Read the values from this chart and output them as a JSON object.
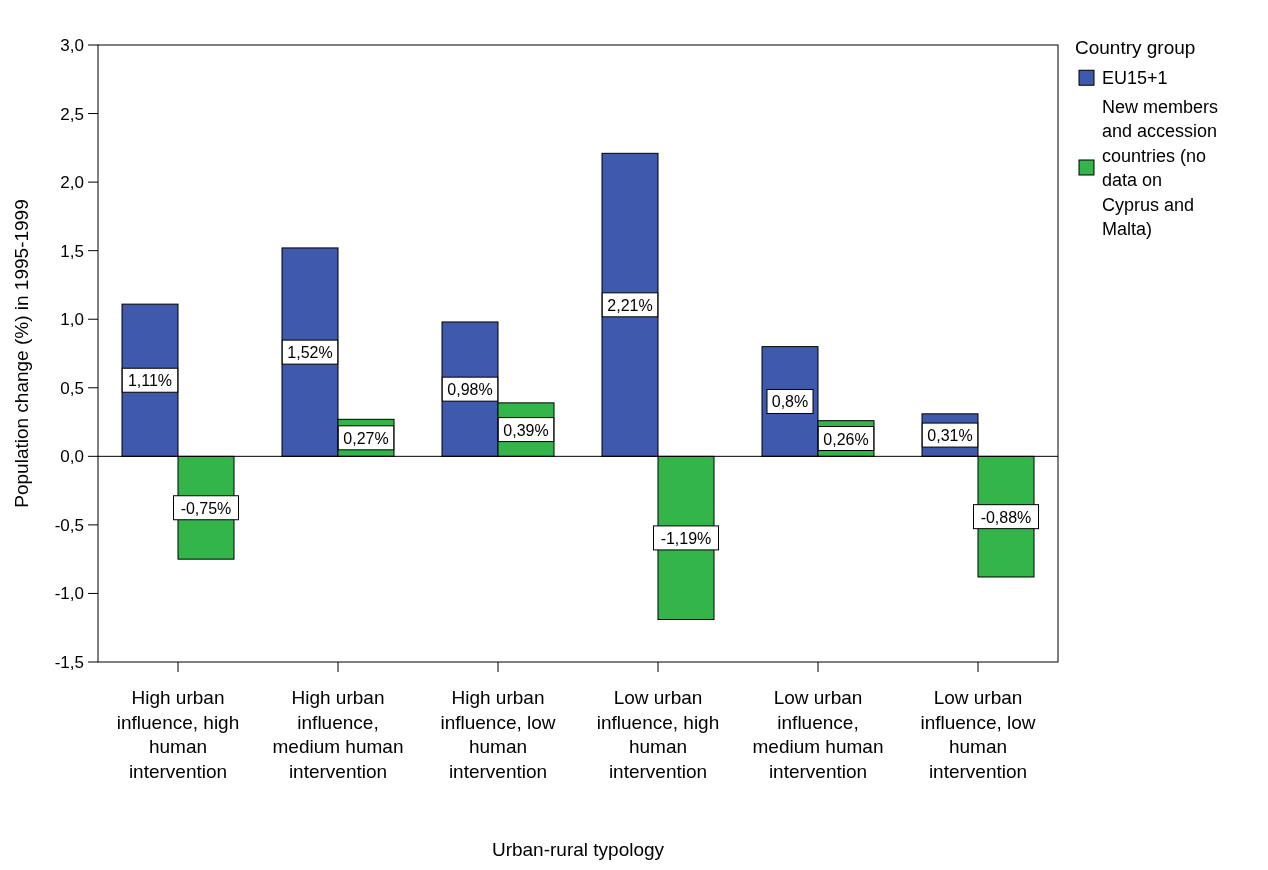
{
  "chart_data": {
    "type": "bar",
    "xlabel": "Urban-rural typology",
    "ylabel": "Population change (%) in 1995-1999",
    "legend_title": "Country group",
    "legend": "top right",
    "categories": [
      "High urban influence, high human intervention",
      "High urban influence, medium human intervention",
      "High urban influence, low human intervention",
      "Low urban influence, high human intervention",
      "Low urban influence, medium human intervention",
      "Low urban influence, low human intervention"
    ],
    "series": [
      {
        "name": "EU15+1",
        "color": "#3f59ad",
        "values": [
          1.11,
          1.52,
          0.98,
          2.21,
          0.8,
          0.31
        ],
        "value_labels": [
          "1,11%",
          "1,52%",
          "0,98%",
          "2,21%",
          "0,8%",
          "0,31%"
        ]
      },
      {
        "name": "New members and accession countries (no data on Cyprus and Malta)",
        "color": "#33b54a",
        "values": [
          -0.75,
          0.27,
          0.39,
          -1.19,
          0.26,
          -0.88
        ],
        "value_labels": [
          "-0,75%",
          "0,27%",
          "0,39%",
          "-1,19%",
          "0,26%",
          "-0,88%"
        ]
      }
    ],
    "ylim": [
      -1.5,
      3.0
    ],
    "yticks": [
      {
        "value": -1.5,
        "label": "-1,5"
      },
      {
        "value": -1.0,
        "label": "-1,0"
      },
      {
        "value": -0.5,
        "label": "-0,5"
      },
      {
        "value": 0,
        "label": "0,0"
      },
      {
        "value": 0.5,
        "label": "0,5"
      },
      {
        "value": 1.0,
        "label": "1,0"
      },
      {
        "value": 1.5,
        "label": "1,5"
      },
      {
        "value": 2.0,
        "label": "2,0"
      },
      {
        "value": 2.5,
        "label": "2,5"
      },
      {
        "value": 3.0,
        "label": "3,0"
      }
    ],
    "ref_lines": [
      {
        "axis": "y",
        "value": 0,
        "label": null
      }
    ]
  }
}
